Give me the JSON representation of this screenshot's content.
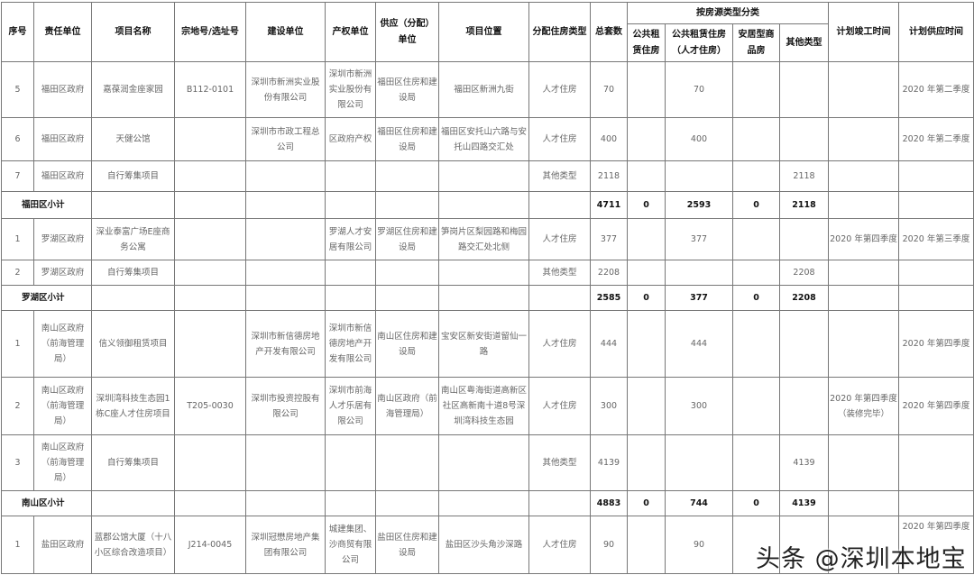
{
  "headers": {
    "seq": "序号",
    "unit": "责任单位",
    "name": "项目名称",
    "lot": "宗地号/选址号",
    "builder": "建设单位",
    "owner": "产权单位",
    "supplier": "供应（分配）单位",
    "location": "项目位置",
    "alloc_type": "分配住房类型",
    "total": "总套数",
    "group": "按房源类型分类",
    "public_rent": "公共租赁住房",
    "talent": "公共租赁住房（人才住房）",
    "anju": "安居型商品房",
    "other": "其他类型",
    "complete": "计划竣工时间",
    "supply": "计划供应时间"
  },
  "rows": [
    {
      "type": "item",
      "seq": "5",
      "unit": "福田区政府",
      "name": "嘉葆润金座家园",
      "lot": "B112-0101",
      "builder": "深圳市新洲实业股份有限公司",
      "owner": "深圳市新洲实业股份有限公司",
      "supplier": "福田区住房和建设局",
      "location": "福田区新洲九街",
      "alloc_type": "人才住房",
      "total": "70",
      "public_rent": "",
      "talent": "70",
      "anju": "",
      "other": "",
      "complete": "",
      "supply": "2020 年第二季度"
    },
    {
      "type": "item",
      "seq": "6",
      "unit": "福田区政府",
      "name": "天健公馆",
      "lot": "",
      "builder": "深圳市市政工程总公司",
      "owner": "区政府产权",
      "supplier": "福田区住房和建设局",
      "location": "福田区安托山六路与安托山四路交汇处",
      "alloc_type": "人才住房",
      "total": "400",
      "public_rent": "",
      "talent": "400",
      "anju": "",
      "other": "",
      "complete": "",
      "supply": "2020 年第二季度"
    },
    {
      "type": "item",
      "seq": "7",
      "unit": "福田区政府",
      "name": "自行筹集项目",
      "lot": "",
      "builder": "",
      "owner": "",
      "supplier": "",
      "location": "",
      "alloc_type": "其他类型",
      "total": "2118",
      "public_rent": "",
      "talent": "",
      "anju": "",
      "other": "2118",
      "complete": "",
      "supply": ""
    },
    {
      "type": "subtotal",
      "label": "福田区小计",
      "total": "4711",
      "public_rent": "0",
      "talent": "2593",
      "anju": "0",
      "other": "2118"
    },
    {
      "type": "item",
      "seq": "1",
      "unit": "罗湖区政府",
      "name": "深业泰富广场E座商务公寓",
      "lot": "",
      "builder": "",
      "owner": "罗湖人才安居有限公司",
      "supplier": "罗湖区住房和建设局",
      "location": "笋岗片区梨园路和梅园路交汇处北侧",
      "alloc_type": "人才住房",
      "total": "377",
      "public_rent": "",
      "talent": "377",
      "anju": "",
      "other": "",
      "complete": "2020 年第四季度",
      "supply": "2020 年第三季度"
    },
    {
      "type": "item",
      "seq": "2",
      "unit": "罗湖区政府",
      "name": "自行筹集项目",
      "lot": "",
      "builder": "",
      "owner": "",
      "supplier": "",
      "location": "",
      "alloc_type": "其他类型",
      "total": "2208",
      "public_rent": "",
      "talent": "",
      "anju": "",
      "other": "2208",
      "complete": "",
      "supply": ""
    },
    {
      "type": "subtotal",
      "label": "罗湖区小计",
      "total": "2585",
      "public_rent": "0",
      "talent": "377",
      "anju": "0",
      "other": "2208"
    },
    {
      "type": "item",
      "seq": "1",
      "unit": "南山区政府（前海管理局）",
      "name": "信义领御租赁项目",
      "lot": "",
      "builder": "深圳市新信德房地产开发有限公司",
      "owner": "深圳市新信德房地产开发有限公司",
      "supplier": "南山区住房和建设局",
      "location": "宝安区新安街道留仙一路",
      "alloc_type": "人才住房",
      "total": "444",
      "public_rent": "",
      "talent": "444",
      "anju": "",
      "other": "",
      "complete": "",
      "supply": "2020 年第四季度"
    },
    {
      "type": "item",
      "seq": "2",
      "unit": "南山区政府（前海管理局）",
      "name": "深圳湾科技生态园1栋C座人才住房项目",
      "lot": "T205-0030",
      "builder": "深圳市投资控股有限公司",
      "owner": "深圳市前海人才乐居有限公司",
      "supplier": "南山区政府（前海管理局）",
      "location": "南山区粤海街道高新区社区高新南十道8号深圳湾科技生态园",
      "alloc_type": "人才住房",
      "total": "300",
      "public_rent": "",
      "talent": "300",
      "anju": "",
      "other": "",
      "complete": "2020 年第四季度（装修完毕）",
      "supply": "2020 年第四季度"
    },
    {
      "type": "item",
      "seq": "3",
      "unit": "南山区政府（前海管理局）",
      "name": "自行筹集项目",
      "lot": "",
      "builder": "",
      "owner": "",
      "supplier": "",
      "location": "",
      "alloc_type": "其他类型",
      "total": "4139",
      "public_rent": "",
      "talent": "",
      "anju": "",
      "other": "4139",
      "complete": "",
      "supply": ""
    },
    {
      "type": "subtotal",
      "label": "南山区小计",
      "total": "4883",
      "public_rent": "0",
      "talent": "744",
      "anju": "0",
      "other": "4139"
    },
    {
      "type": "item",
      "seq": "1",
      "unit": "盐田区政府",
      "name": "蓝郡公馆大厦（十八小区综合改造项目）",
      "lot": "J214-0045",
      "builder": "深圳冠懋房地产集团有限公司",
      "owner": "城建集团、沙商贸有限公司",
      "supplier": "盐田区住房和建设局",
      "location": "盐田区沙头角沙深路",
      "alloc_type": "人才住房",
      "total": "90",
      "public_rent": "",
      "talent": "90",
      "anju": "",
      "other": "",
      "complete": "",
      "supply": "2020 年第四季度"
    }
  ],
  "watermark": "头条 @深圳本地宝"
}
